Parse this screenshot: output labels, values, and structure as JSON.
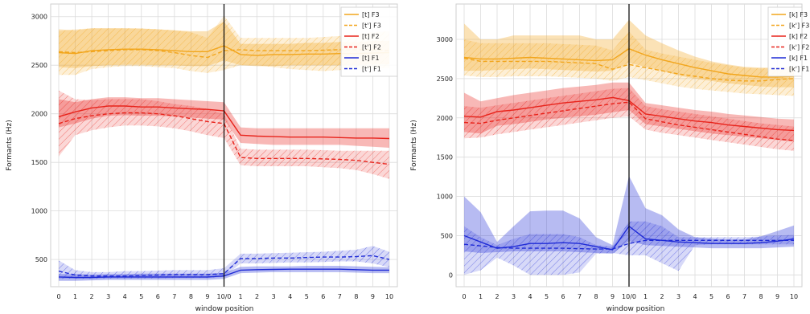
{
  "chart_data": [
    {
      "type": "line",
      "title": "",
      "xlabel": "window position",
      "ylabel": "Formants (Hz)",
      "ylim": [
        220,
        3130
      ],
      "yticks": [
        500,
        1000,
        1500,
        2000,
        2500,
        3000
      ],
      "x_tick_labels": [
        "0",
        "1",
        "2",
        "3",
        "4",
        "5",
        "6",
        "7",
        "8",
        "9",
        "10/0",
        "1",
        "2",
        "3",
        "4",
        "5",
        "6",
        "7",
        "8",
        "9",
        "10"
      ],
      "boundary_index": 10,
      "grid": true,
      "legend_placement": "top-right",
      "legend": [
        "[t] F3",
        "[t'] F3",
        "[t] F2",
        "[t'] F2",
        "[t] F1",
        "[t'] F1"
      ],
      "series": [
        {
          "name": "[t] F3",
          "formant": "F3",
          "dashed": false,
          "color": "#f2a51b",
          "values": [
            2630,
            2620,
            2650,
            2660,
            2665,
            2665,
            2660,
            2650,
            2640,
            2640,
            2700,
            2610,
            2600,
            2610,
            2610,
            2615,
            2615,
            2620,
            2620,
            2625,
            2630
          ],
          "lower": [
            2480,
            2470,
            2490,
            2500,
            2505,
            2505,
            2500,
            2500,
            2490,
            2490,
            2550,
            2500,
            2490,
            2490,
            2500,
            2500,
            2500,
            2500,
            2500,
            2510,
            2510
          ],
          "upper": [
            2870,
            2860,
            2880,
            2880,
            2880,
            2875,
            2870,
            2860,
            2850,
            2850,
            2950,
            2720,
            2720,
            2720,
            2720,
            2730,
            2730,
            2740,
            2740,
            2750,
            2750
          ]
        },
        {
          "name": "[t'] F3",
          "formant": "F3",
          "dashed": true,
          "color": "#f2a51b",
          "values": [
            2640,
            2630,
            2640,
            2650,
            2660,
            2660,
            2650,
            2630,
            2600,
            2580,
            2650,
            2660,
            2650,
            2650,
            2650,
            2650,
            2655,
            2660,
            2660,
            2660,
            2650
          ],
          "lower": [
            2400,
            2400,
            2460,
            2480,
            2490,
            2490,
            2480,
            2470,
            2440,
            2420,
            2450,
            2500,
            2500,
            2480,
            2460,
            2450,
            2440,
            2450,
            2460,
            2470,
            2470
          ],
          "upper": [
            2850,
            2870,
            2880,
            2880,
            2880,
            2880,
            2870,
            2860,
            2840,
            2780,
            3010,
            2780,
            2780,
            2780,
            2780,
            2780,
            2790,
            2800,
            2820,
            2840,
            2850
          ]
        },
        {
          "name": "[t] F2",
          "formant": "F2",
          "dashed": false,
          "color": "#e8231b",
          "values": [
            1970,
            2020,
            2060,
            2080,
            2080,
            2070,
            2070,
            2060,
            2050,
            2045,
            2030,
            1780,
            1770,
            1765,
            1760,
            1760,
            1760,
            1755,
            1750,
            1750,
            1745
          ],
          "lower": [
            1860,
            1900,
            1950,
            1980,
            1985,
            1980,
            1980,
            1970,
            1960,
            1950,
            1940,
            1700,
            1690,
            1680,
            1680,
            1680,
            1680,
            1680,
            1670,
            1660,
            1650
          ],
          "upper": [
            2150,
            2120,
            2150,
            2170,
            2170,
            2160,
            2160,
            2150,
            2140,
            2130,
            2120,
            1860,
            1850,
            1850,
            1850,
            1850,
            1850,
            1850,
            1850,
            1850,
            1850
          ]
        },
        {
          "name": "[t'] F2",
          "formant": "F2",
          "dashed": true,
          "color": "#e8231b",
          "values": [
            1900,
            1950,
            1980,
            2000,
            2010,
            2010,
            2000,
            1980,
            1950,
            1920,
            1900,
            1550,
            1540,
            1540,
            1540,
            1540,
            1535,
            1530,
            1520,
            1500,
            1480
          ],
          "lower": [
            1560,
            1780,
            1830,
            1860,
            1880,
            1880,
            1870,
            1850,
            1820,
            1780,
            1750,
            1470,
            1460,
            1460,
            1460,
            1460,
            1450,
            1440,
            1420,
            1380,
            1330
          ],
          "upper": [
            2240,
            2150,
            2140,
            2150,
            2150,
            2150,
            2130,
            2100,
            2080,
            2050,
            2000,
            1640,
            1630,
            1630,
            1630,
            1630,
            1625,
            1620,
            1620,
            1620,
            1620
          ]
        },
        {
          "name": "[t] F1",
          "formant": "F1",
          "dashed": false,
          "color": "#1f2bd6",
          "values": [
            320,
            315,
            315,
            320,
            320,
            320,
            320,
            320,
            320,
            320,
            330,
            390,
            395,
            398,
            400,
            400,
            400,
            400,
            395,
            390,
            390
          ],
          "lower": [
            280,
            280,
            285,
            290,
            290,
            290,
            290,
            290,
            290,
            290,
            300,
            360,
            365,
            370,
            370,
            370,
            370,
            370,
            365,
            360,
            360
          ],
          "upper": [
            350,
            350,
            345,
            350,
            350,
            355,
            355,
            355,
            355,
            355,
            360,
            425,
            430,
            430,
            430,
            435,
            435,
            435,
            430,
            425,
            420
          ]
        },
        {
          "name": "[t'] F1",
          "formant": "F1",
          "dashed": true,
          "color": "#1f2bd6",
          "values": [
            380,
            340,
            330,
            330,
            330,
            335,
            340,
            345,
            345,
            345,
            355,
            510,
            510,
            515,
            515,
            520,
            525,
            525,
            530,
            540,
            500
          ],
          "lower": [
            300,
            300,
            300,
            305,
            305,
            305,
            305,
            310,
            310,
            310,
            320,
            460,
            460,
            465,
            470,
            470,
            475,
            480,
            480,
            460,
            420
          ],
          "upper": [
            490,
            390,
            370,
            370,
            380,
            380,
            385,
            390,
            390,
            390,
            410,
            560,
            560,
            565,
            570,
            575,
            580,
            590,
            600,
            640,
            580
          ]
        }
      ]
    },
    {
      "type": "line",
      "title": "",
      "xlabel": "window position",
      "ylabel": "Formants (Hz)",
      "ylim": [
        -150,
        3450
      ],
      "yticks": [
        0,
        500,
        1000,
        1500,
        2000,
        2500,
        3000
      ],
      "x_tick_labels": [
        "0",
        "1",
        "2",
        "3",
        "4",
        "5",
        "6",
        "7",
        "8",
        "9",
        "10/0",
        "1",
        "2",
        "3",
        "4",
        "5",
        "6",
        "7",
        "8",
        "9",
        "10"
      ],
      "boundary_index": 10,
      "grid": true,
      "legend_placement": "top-right",
      "legend": [
        "[k] F3",
        "[k'] F3",
        "[k] F2",
        "[k'] F2",
        "[k] F1",
        "[k'] F1"
      ],
      "series": [
        {
          "name": "[k] F3",
          "formant": "F3",
          "dashed": false,
          "color": "#f2a51b",
          "values": [
            2770,
            2750,
            2750,
            2760,
            2770,
            2760,
            2750,
            2740,
            2730,
            2740,
            2880,
            2800,
            2740,
            2690,
            2640,
            2600,
            2560,
            2540,
            2520,
            2520,
            2530
          ],
          "lower": [
            2600,
            2600,
            2610,
            2620,
            2630,
            2620,
            2610,
            2600,
            2590,
            2600,
            2700,
            2650,
            2600,
            2540,
            2500,
            2470,
            2440,
            2420,
            2400,
            2390,
            2390
          ],
          "upper": [
            3200,
            3000,
            3000,
            3050,
            3050,
            3050,
            3050,
            3050,
            3000,
            3000,
            3250,
            3050,
            2950,
            2860,
            2780,
            2720,
            2680,
            2650,
            2640,
            2640,
            2650
          ]
        },
        {
          "name": "[k'] F3",
          "formant": "F3",
          "dashed": true,
          "color": "#f2a51b",
          "values": [
            2760,
            2720,
            2720,
            2720,
            2720,
            2720,
            2710,
            2700,
            2690,
            2620,
            2680,
            2640,
            2600,
            2560,
            2530,
            2500,
            2480,
            2470,
            2470,
            2490,
            2500
          ],
          "lower": [
            2540,
            2520,
            2520,
            2530,
            2530,
            2530,
            2520,
            2510,
            2500,
            2470,
            2520,
            2480,
            2440,
            2400,
            2370,
            2350,
            2330,
            2310,
            2300,
            2290,
            2280
          ],
          "upper": [
            3000,
            2950,
            2950,
            2950,
            2950,
            2950,
            2940,
            2930,
            2920,
            2860,
            3100,
            2870,
            2820,
            2780,
            2740,
            2700,
            2670,
            2640,
            2630,
            2640,
            2640
          ]
        },
        {
          "name": "[k] F2",
          "formant": "F2",
          "dashed": false,
          "color": "#e8231b",
          "values": [
            2020,
            2010,
            2080,
            2100,
            2130,
            2160,
            2190,
            2210,
            2230,
            2260,
            2220,
            2050,
            2020,
            1990,
            1960,
            1940,
            1910,
            1890,
            1870,
            1850,
            1840
          ],
          "lower": [
            1820,
            1800,
            1900,
            1920,
            1950,
            1980,
            2000,
            2020,
            2040,
            2070,
            2100,
            1920,
            1890,
            1860,
            1830,
            1800,
            1780,
            1760,
            1740,
            1720,
            1700
          ],
          "upper": [
            2320,
            2210,
            2250,
            2290,
            2320,
            2350,
            2380,
            2400,
            2420,
            2450,
            2450,
            2190,
            2160,
            2130,
            2100,
            2080,
            2050,
            2030,
            2010,
            1990,
            1980
          ]
        },
        {
          "name": "[k'] F2",
          "formant": "F2",
          "dashed": true,
          "color": "#e8231b",
          "values": [
            1940,
            1930,
            1970,
            2000,
            2030,
            2060,
            2090,
            2120,
            2150,
            2180,
            2200,
            1990,
            1950,
            1910,
            1880,
            1850,
            1820,
            1790,
            1760,
            1730,
            1710
          ],
          "lower": [
            1740,
            1750,
            1790,
            1820,
            1850,
            1880,
            1910,
            1940,
            1970,
            2000,
            2020,
            1850,
            1810,
            1780,
            1750,
            1720,
            1690,
            1660,
            1630,
            1600,
            1580
          ],
          "upper": [
            2150,
            2130,
            2160,
            2190,
            2220,
            2250,
            2280,
            2310,
            2340,
            2370,
            2380,
            2150,
            2110,
            2080,
            2050,
            2020,
            1990,
            1960,
            1930,
            1910,
            1890
          ]
        },
        {
          "name": "[k] F1",
          "formant": "F1",
          "dashed": false,
          "color": "#1f2bd6",
          "values": [
            500,
            420,
            340,
            360,
            400,
            400,
            410,
            400,
            360,
            320,
            620,
            460,
            440,
            420,
            410,
            400,
            400,
            400,
            410,
            430,
            460
          ],
          "lower": [
            300,
            280,
            290,
            300,
            300,
            300,
            300,
            290,
            280,
            270,
            430,
            380,
            370,
            360,
            350,
            340,
            340,
            340,
            340,
            350,
            360
          ],
          "upper": [
            1000,
            800,
            420,
            620,
            810,
            820,
            820,
            720,
            480,
            380,
            1260,
            850,
            760,
            580,
            480,
            460,
            450,
            450,
            490,
            560,
            630
          ]
        },
        {
          "name": "[k'] F1",
          "formant": "F1",
          "dashed": true,
          "color": "#1f2bd6",
          "values": [
            390,
            370,
            350,
            340,
            340,
            340,
            340,
            335,
            330,
            330,
            400,
            440,
            440,
            440,
            440,
            440,
            440,
            440,
            440,
            440,
            440
          ],
          "lower": [
            0,
            60,
            220,
            120,
            0,
            0,
            0,
            30,
            270,
            280,
            250,
            250,
            150,
            50,
            380,
            390,
            390,
            390,
            390,
            390,
            390
          ],
          "upper": [
            620,
            480,
            380,
            460,
            520,
            520,
            520,
            480,
            380,
            360,
            680,
            680,
            620,
            480,
            480,
            480,
            480,
            480,
            490,
            500,
            510
          ]
        }
      ]
    }
  ]
}
